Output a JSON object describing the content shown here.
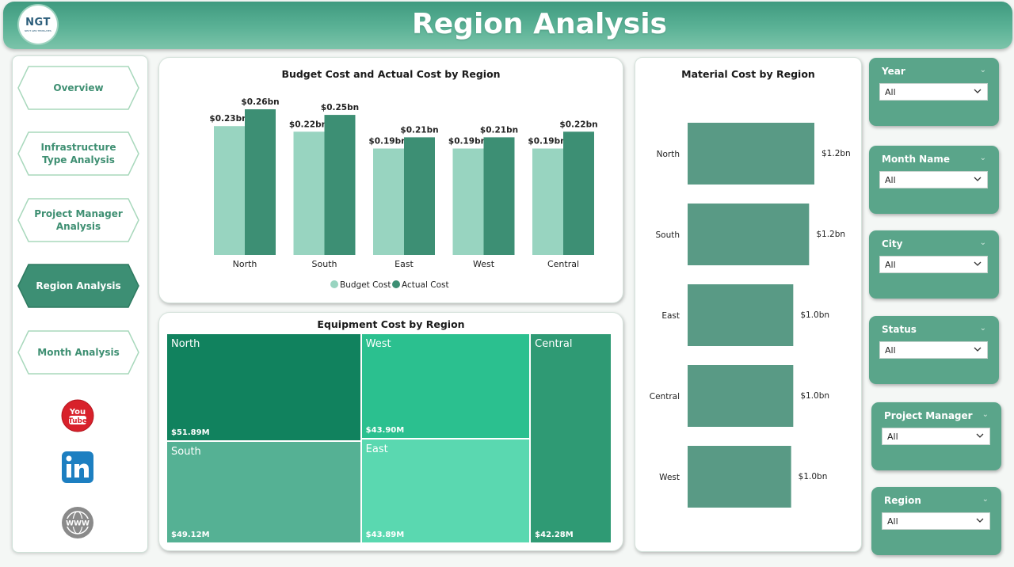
{
  "header": {
    "title": "Region Analysis",
    "logo_text": "NGT",
    "logo_sub": "NEXT GEN TEMPLATES"
  },
  "nav": {
    "items": [
      {
        "label": "Overview",
        "active": false
      },
      {
        "label": "Infrastructure Type Analysis",
        "active": false
      },
      {
        "label": "Project Manager Analysis",
        "active": false
      },
      {
        "label": "Region Analysis",
        "active": true
      },
      {
        "label": "Month Analysis",
        "active": false
      }
    ],
    "social": [
      "youtube-icon",
      "linkedin-icon",
      "www-icon"
    ]
  },
  "colors": {
    "accent": "#3d8f74",
    "light": "#98d4c0",
    "panel": "#5aa58a"
  },
  "budget_chart": {
    "title": "Budget Cost and Actual Cost by Region",
    "legend": [
      "Budget Cost",
      "Actual Cost"
    ]
  },
  "material_chart": {
    "title": "Material Cost by Region"
  },
  "equipment_chart": {
    "title": "Equipment Cost by Region"
  },
  "chart_data": [
    {
      "type": "bar",
      "title": "Budget Cost and Actual Cost by Region",
      "categories": [
        "North",
        "South",
        "East",
        "West",
        "Central"
      ],
      "series": [
        {
          "name": "Budget Cost",
          "values": [
            0.23,
            0.22,
            0.19,
            0.19,
            0.19
          ],
          "labels": [
            "$0.23bn",
            "$0.22bn",
            "$0.19bn",
            "$0.19bn",
            "$0.19bn"
          ],
          "color": "#98d4c0"
        },
        {
          "name": "Actual Cost",
          "values": [
            0.26,
            0.25,
            0.21,
            0.21,
            0.22
          ],
          "labels": [
            "$0.26bn",
            "$0.25bn",
            "$0.21bn",
            "$0.21bn",
            "$0.22bn"
          ],
          "color": "#3d8f74"
        }
      ],
      "ylim": [
        0,
        0.26
      ],
      "legend_position": "bottom"
    },
    {
      "type": "bar",
      "orientation": "horizontal",
      "title": "Material Cost by Region",
      "categories": [
        "North",
        "South",
        "East",
        "Central",
        "West"
      ],
      "values": [
        1.2,
        1.15,
        1.0,
        1.0,
        0.98
      ],
      "labels": [
        "$1.2bn",
        "$1.2bn",
        "$1.0bn",
        "$1.0bn",
        "$1.0bn"
      ],
      "color": "#599a85"
    },
    {
      "type": "treemap",
      "title": "Equipment Cost by Region",
      "items": [
        {
          "name": "North",
          "value": 51.89,
          "label": "$51.89M",
          "color": "#11825e"
        },
        {
          "name": "South",
          "value": 49.12,
          "label": "$49.12M",
          "color": "#55b194"
        },
        {
          "name": "West",
          "value": 43.9,
          "label": "$43.90M",
          "color": "#2bc08f"
        },
        {
          "name": "East",
          "value": 43.89,
          "label": "$43.89M",
          "color": "#5ad8b0"
        },
        {
          "name": "Central",
          "value": 42.28,
          "label": "$42.28M",
          "color": "#2f9a74"
        }
      ]
    }
  ],
  "filters": [
    {
      "label": "Year",
      "value": "All"
    },
    {
      "label": "Month Name",
      "value": "All"
    },
    {
      "label": "City",
      "value": "All"
    },
    {
      "label": "Status",
      "value": "All"
    },
    {
      "label": "Project Manager",
      "value": "All"
    },
    {
      "label": "Region",
      "value": "All"
    }
  ]
}
